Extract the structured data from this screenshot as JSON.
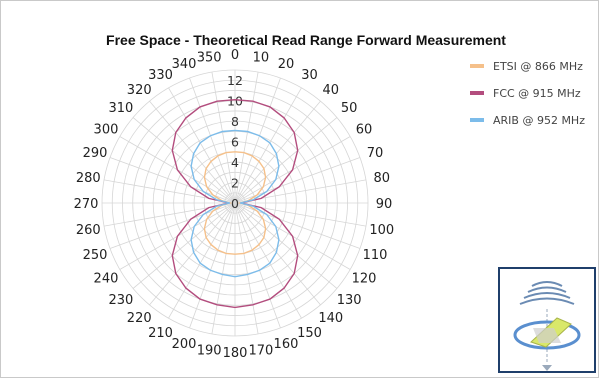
{
  "chart_data": {
    "type": "polar-line",
    "title": "Free Space - Theoretical Read Range Forward Measurement",
    "angle_labels": [
      0,
      10,
      20,
      30,
      40,
      50,
      60,
      70,
      80,
      90,
      100,
      110,
      120,
      130,
      140,
      150,
      160,
      170,
      180,
      190,
      200,
      210,
      220,
      230,
      240,
      250,
      260,
      270,
      280,
      290,
      300,
      310,
      320,
      330,
      340,
      350
    ],
    "radial_ticks": [
      0,
      2,
      4,
      6,
      8,
      10,
      12
    ],
    "rlim": [
      0,
      13
    ],
    "legend_position": "top-right",
    "series": [
      {
        "name": "ETSI @ 866 MHz",
        "color": "#f5c08a",
        "r": [
          5.0,
          5.0,
          4.9,
          4.7,
          4.4,
          3.9,
          3.2,
          2.3,
          1.3,
          0.5,
          1.3,
          2.3,
          3.2,
          3.9,
          4.4,
          4.7,
          4.9,
          5.0,
          5.0,
          5.0,
          4.9,
          4.7,
          4.4,
          3.9,
          3.2,
          2.3,
          1.3,
          0.5,
          1.3,
          2.3,
          3.2,
          3.9,
          4.4,
          4.7,
          4.9,
          5.0
        ]
      },
      {
        "name": "FCC @ 915 MHz",
        "color": "#b34d7e",
        "r": [
          10.1,
          10.1,
          10.0,
          9.6,
          9.0,
          8.0,
          6.5,
          4.6,
          2.6,
          0.6,
          2.6,
          4.6,
          6.5,
          8.0,
          9.0,
          9.6,
          10.0,
          10.1,
          10.2,
          10.1,
          10.0,
          9.6,
          9.0,
          8.0,
          6.5,
          4.6,
          2.6,
          0.6,
          2.6,
          4.6,
          6.5,
          8.0,
          9.0,
          9.6,
          10.0,
          10.1
        ]
      },
      {
        "name": "ARIB @ 952 MHz",
        "color": "#7cbcea",
        "r": [
          7.1,
          7.1,
          7.0,
          6.8,
          6.3,
          5.6,
          4.6,
          3.3,
          1.8,
          0.5,
          1.8,
          3.3,
          4.6,
          5.6,
          6.3,
          6.8,
          7.0,
          7.1,
          7.2,
          7.1,
          7.0,
          6.8,
          6.3,
          5.6,
          4.6,
          3.3,
          1.8,
          0.5,
          1.8,
          3.3,
          4.6,
          5.6,
          6.3,
          6.8,
          7.0,
          7.1
        ]
      }
    ]
  },
  "colors": {
    "grid": "#d6d6d6",
    "inset_border": "#1f3f6b",
    "inset_waves": "#6b8bb3",
    "inset_tag": "#d9e86a"
  },
  "icons": {
    "inset": "rfid-tag-antenna-icon"
  }
}
